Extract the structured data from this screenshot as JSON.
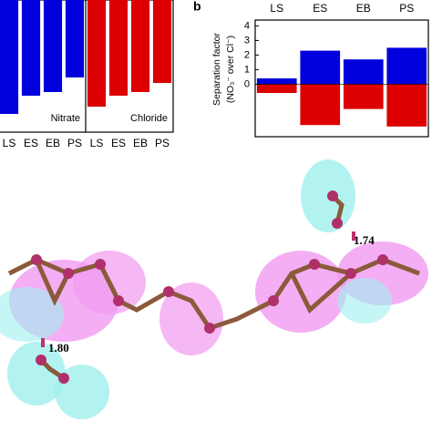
{
  "chart_data": [
    {
      "type": "bar",
      "categories": [
        "LS",
        "ES",
        "EB",
        "PS"
      ],
      "series": [
        {
          "name": "Nitrate",
          "color": "#0000dd",
          "values": [
            -125,
            -105,
            -101,
            -85
          ]
        },
        {
          "name": "Chloride",
          "color": "#dd0000",
          "values": [
            -117,
            -105,
            -101,
            -91
          ]
        }
      ],
      "ylim": [
        -145,
        0
      ]
    },
    {
      "type": "bar",
      "panel_label": "b",
      "y_label": [
        "Separation factor",
        "(NO₃⁻ over Cl⁻)"
      ],
      "categories": [
        "LS",
        "ES",
        "EB",
        "PS"
      ],
      "series": [
        {
          "color": "#0000dd",
          "values": [
            0.4,
            2.3,
            1.7,
            2.5
          ]
        },
        {
          "color": "#dd0000",
          "values": [
            -0.6,
            -2.8,
            -1.7,
            -2.9
          ]
        }
      ],
      "ylim": [
        -3.6,
        4.4
      ],
      "yticks": [
        0,
        1,
        2,
        3,
        4
      ]
    }
  ],
  "figure_annotations": [
    "1.80",
    "1.74"
  ]
}
